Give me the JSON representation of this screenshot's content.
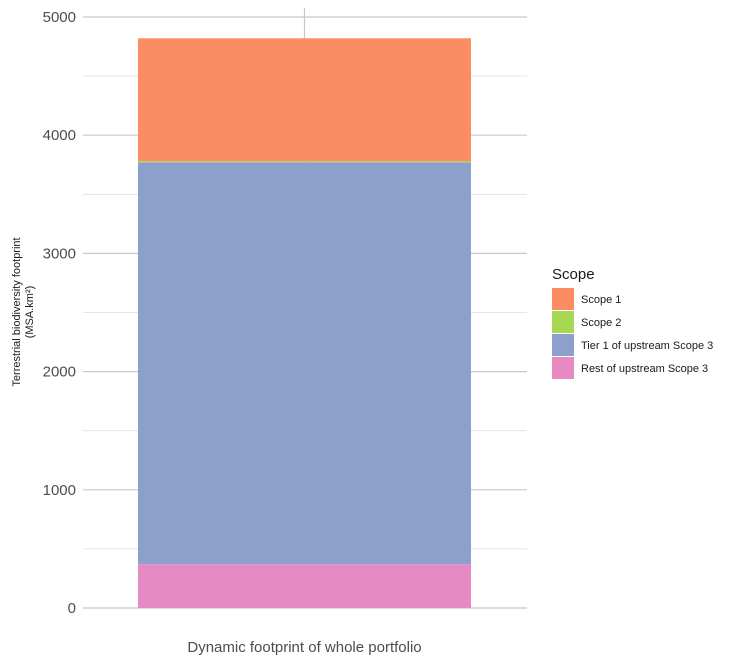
{
  "chart_data": {
    "type": "bar",
    "stacked": true,
    "categories": [
      "Dynamic footprint of whole portfolio"
    ],
    "ylabel_line1": "Terrestrial biodiversity footprint",
    "ylabel_line2": "(MSA.km²)",
    "ylim": [
      0,
      5000
    ],
    "yticks": [
      0,
      1000,
      2000,
      3000,
      4000,
      5000
    ],
    "grid": true,
    "legend": {
      "title": "Scope",
      "placement": "right"
    },
    "series": [
      {
        "name": "Rest of upstream Scope 3",
        "color": "#e78ac3",
        "values": [
          370
        ]
      },
      {
        "name": "Tier 1 of upstream Scope 3",
        "color": "#8da0cb",
        "values": [
          3400
        ]
      },
      {
        "name": "Scope 2",
        "color": "#a6d854",
        "values": [
          10
        ]
      },
      {
        "name": "Scope 1",
        "color": "#fc8d62",
        "values": [
          1040
        ]
      }
    ],
    "legend_order": [
      "Scope 1",
      "Scope 2",
      "Tier 1 of upstream Scope 3",
      "Rest of upstream Scope 3"
    ]
  }
}
